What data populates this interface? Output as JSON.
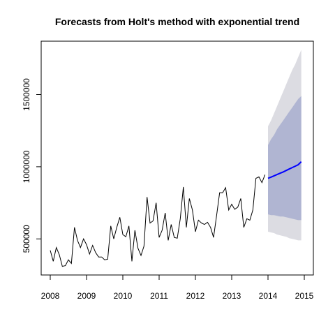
{
  "chart_data": {
    "type": "line",
    "title": "Forecasts from Holt's method with exponential trend",
    "xlabel": "",
    "ylabel": "",
    "xlim": [
      2007.75,
      2015.25
    ],
    "ylim": [
      250000,
      1870000
    ],
    "x_ticks": [
      2008,
      2009,
      2010,
      2011,
      2012,
      2013,
      2014,
      2015
    ],
    "x_tick_labels": [
      "2008",
      "2009",
      "2010",
      "2011",
      "2012",
      "2013",
      "2014",
      "2015"
    ],
    "y_ticks": [
      500000,
      1000000,
      1500000
    ],
    "y_tick_labels": [
      "500000",
      "1000000",
      "1500000"
    ],
    "grid": false,
    "legend": "none",
    "colors": {
      "observed": "#000000",
      "forecast": "#0000ff",
      "pi80": "#b0b5d2",
      "pi95": "#dcdce2"
    },
    "series": [
      {
        "role": "observed",
        "x": [
          2008.0,
          2008.083,
          2008.167,
          2008.25,
          2008.333,
          2008.417,
          2008.5,
          2008.583,
          2008.667,
          2008.75,
          2008.833,
          2008.917,
          2009.0,
          2009.083,
          2009.167,
          2009.25,
          2009.333,
          2009.417,
          2009.5,
          2009.583,
          2009.667,
          2009.75,
          2009.833,
          2009.917,
          2010.0,
          2010.083,
          2010.167,
          2010.25,
          2010.333,
          2010.417,
          2010.5,
          2010.583,
          2010.667,
          2010.75,
          2010.833,
          2010.917,
          2011.0,
          2011.083,
          2011.167,
          2011.25,
          2011.333,
          2011.417,
          2011.5,
          2011.583,
          2011.667,
          2011.75,
          2011.833,
          2011.917,
          2012.0,
          2012.083,
          2012.167,
          2012.25,
          2012.333,
          2012.417,
          2012.5,
          2012.583,
          2012.667,
          2012.75,
          2012.833,
          2012.917,
          2013.0,
          2013.083,
          2013.167,
          2013.25,
          2013.333,
          2013.417,
          2013.5,
          2013.583,
          2013.667,
          2013.75,
          2013.833,
          2013.917
        ],
        "values": [
          420000,
          345000,
          440000,
          390000,
          310000,
          315000,
          355000,
          330000,
          580000,
          490000,
          440000,
          500000,
          460000,
          395000,
          455000,
          405000,
          375000,
          375000,
          355000,
          360000,
          590000,
          500000,
          580000,
          650000,
          530000,
          515000,
          590000,
          345000,
          560000,
          435000,
          385000,
          450000,
          790000,
          610000,
          625000,
          750000,
          510000,
          560000,
          680000,
          490000,
          600000,
          510000,
          505000,
          640000,
          860000,
          580000,
          780000,
          700000,
          550000,
          630000,
          610000,
          600000,
          615000,
          580000,
          510000,
          660000,
          820000,
          820000,
          855000,
          700000,
          740000,
          705000,
          720000,
          780000,
          580000,
          640000,
          630000,
          700000,
          920000,
          930000,
          890000,
          945000
        ]
      },
      {
        "role": "forecast",
        "x": [
          2014.0,
          2014.083,
          2014.167,
          2014.25,
          2014.333,
          2014.417,
          2014.5,
          2014.583,
          2014.667,
          2014.75,
          2014.833,
          2014.917
        ],
        "values": [
          920000,
          928000,
          937000,
          946000,
          955000,
          964000,
          974000,
          984000,
          994000,
          1004000,
          1014000,
          1035000
        ],
        "pi80_lower": [
          670000,
          665000,
          665000,
          660000,
          655000,
          655000,
          650000,
          645000,
          640000,
          635000,
          630000,
          630000
        ],
        "pi80_upper": [
          1150000,
          1190000,
          1220000,
          1260000,
          1290000,
          1320000,
          1350000,
          1380000,
          1410000,
          1440000,
          1470000,
          1490000
        ],
        "pi95_lower": [
          550000,
          545000,
          540000,
          530000,
          525000,
          520000,
          515000,
          505000,
          500000,
          495000,
          490000,
          490000
        ],
        "pi95_upper": [
          1280000,
          1320000,
          1370000,
          1420000,
          1470000,
          1520000,
          1570000,
          1620000,
          1670000,
          1710000,
          1760000,
          1810000
        ]
      }
    ]
  }
}
